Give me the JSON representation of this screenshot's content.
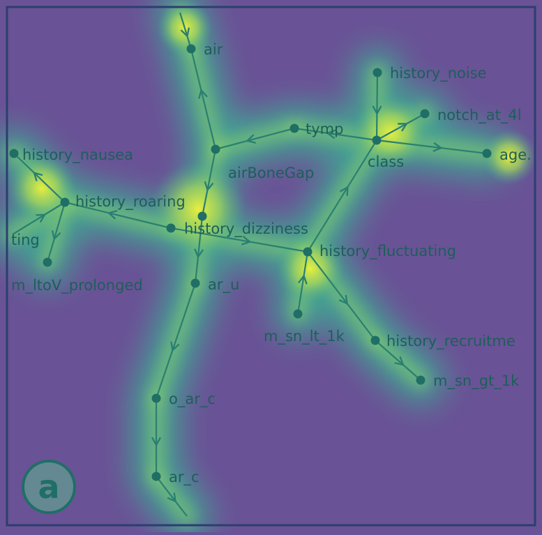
{
  "figure": {
    "panel_label": "a",
    "colors": {
      "background": "#6a5296",
      "heat_low": "#3fa893",
      "heat_mid": "#8fd36a",
      "heat_high": "#e6ef3c",
      "node": "#1f6f66",
      "edge": "#2a7f73",
      "label": "#1d5f5a",
      "frame": "#2b3f6e"
    }
  },
  "nodes": [
    {
      "id": "air",
      "label": "air"
    },
    {
      "id": "history_noise",
      "label": "history_noise"
    },
    {
      "id": "notch_at_4",
      "label": "notch_at_4l"
    },
    {
      "id": "tymp",
      "label": "tymp"
    },
    {
      "id": "class",
      "label": "class"
    },
    {
      "id": "age",
      "label": "age."
    },
    {
      "id": "airBoneGap",
      "label": "airBoneGap"
    },
    {
      "id": "history_nausea",
      "label": "history_nausea"
    },
    {
      "id": "history_roaring",
      "label": "history_roaring"
    },
    {
      "id": "history_dizziness",
      "label": "history_dizziness"
    },
    {
      "id": "ting",
      "label": "ting"
    },
    {
      "id": "history_fluctuating",
      "label": "history_fluctuating"
    },
    {
      "id": "m_ltoV_prolonged",
      "label": "m_ltoV_prolonged"
    },
    {
      "id": "ar_u",
      "label": "ar_u"
    },
    {
      "id": "m_sn_lt_1k",
      "label": "m_sn_lt_1k"
    },
    {
      "id": "history_recruitment",
      "label": "history_recruitme"
    },
    {
      "id": "m_sn_gt_1k",
      "label": "m_sn_gt_1k"
    },
    {
      "id": "o_ar_c",
      "label": "o_ar_c"
    },
    {
      "id": "ar_c",
      "label": "ar_c"
    }
  ],
  "edges": [
    {
      "from": "airBoneGap",
      "to": "air"
    },
    {
      "from": "tymp",
      "to": "airBoneGap"
    },
    {
      "from": "airBoneGap",
      "to": "history_dizziness"
    },
    {
      "from": "history_noise",
      "to": "class"
    },
    {
      "from": "class",
      "to": "notch_at_4"
    },
    {
      "from": "class",
      "to": "tymp"
    },
    {
      "from": "class",
      "to": "age"
    },
    {
      "from": "history_fluctuating",
      "to": "class"
    },
    {
      "from": "history_dizziness",
      "to": "history_roaring"
    },
    {
      "from": "history_dizziness",
      "to": "history_fluctuating"
    },
    {
      "from": "history_roaring",
      "to": "history_nausea"
    },
    {
      "from": "ting",
      "to": "history_roaring"
    },
    {
      "from": "history_roaring",
      "to": "m_ltoV_prolonged"
    },
    {
      "from": "history_dizziness",
      "to": "ar_u"
    },
    {
      "from": "m_sn_lt_1k",
      "to": "history_fluctuating"
    },
    {
      "from": "history_fluctuating",
      "to": "history_recruitment"
    },
    {
      "from": "history_recruitment",
      "to": "m_sn_gt_1k"
    },
    {
      "from": "ar_u",
      "to": "o_ar_c"
    },
    {
      "from": "o_ar_c",
      "to": "ar_c"
    },
    {
      "from": "ar_c",
      "to": "exit_bottom"
    },
    {
      "from": "exit_top",
      "to": "air"
    }
  ]
}
